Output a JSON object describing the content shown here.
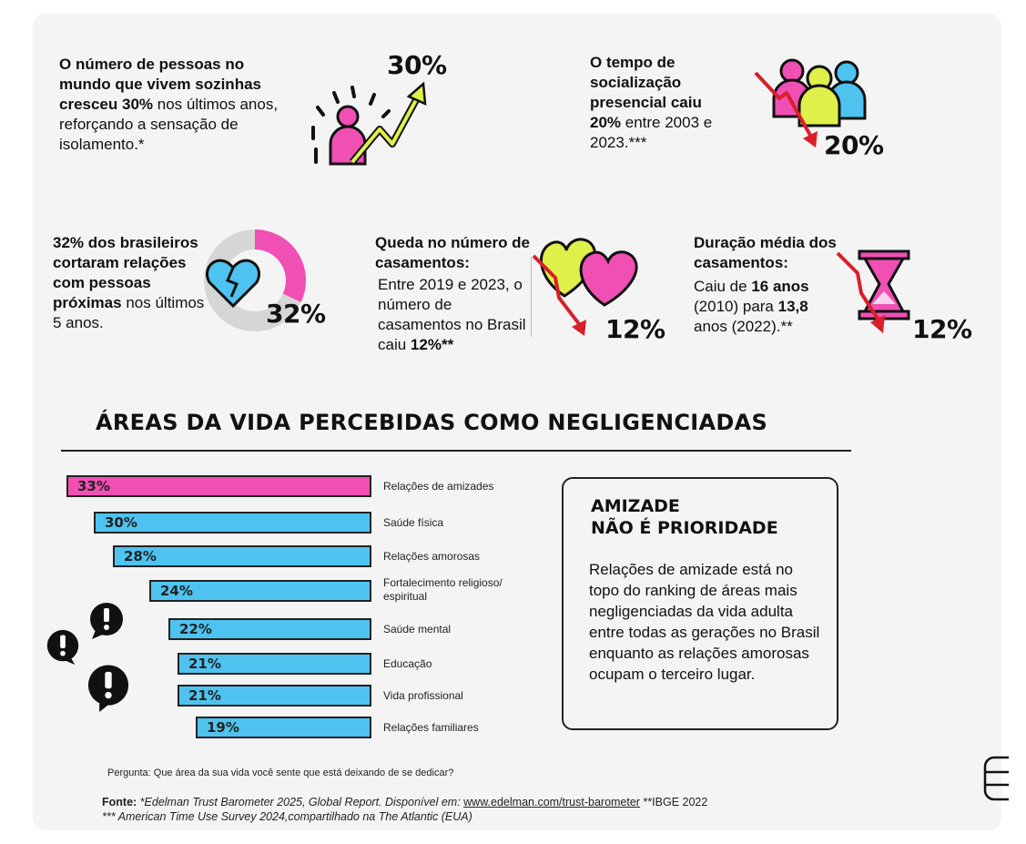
{
  "colors": {
    "pink": "#f04fb4",
    "blue": "#4ec3f0",
    "lime": "#dff04a",
    "red": "#d8202a",
    "dark": "#111111",
    "bg": "#f4f4f4"
  },
  "stats": {
    "alone": {
      "pre": "O número de pessoas no mundo que vivem sozinhas cresceu ",
      "strong": "30%",
      "post": " nos últimos anos, reforçando a sensação de isolamento.*",
      "pct": "30%"
    },
    "social": {
      "pre": "O tempo de socialização presencial caiu ",
      "strong": "20%",
      "post": " entre 2003 e 2023.***",
      "pct": "20%"
    },
    "cut": {
      "text": "32% dos brasileiros cortaram relações com pessoas próximas",
      "post": "nos últimos 5 anos.",
      "pct": "32%",
      "share": 32
    },
    "marriage": {
      "title": "Queda no número de casamentos:",
      "pre": "Entre 2019 e 2023, o número de casamentos no Brasil caiu ",
      "strong": "12%**",
      "pct": "12%"
    },
    "duration": {
      "title": "Duração média dos casamentos:",
      "pre": "Caiu de ",
      "strong1": "16 anos",
      "mid": " (2010) para ",
      "strong2": "13,8",
      "post": " anos (2022).**",
      "pct": "12%"
    }
  },
  "chart_data": {
    "type": "bar",
    "title": "ÁREAS DA VIDA PERCEBIDAS COMO NEGLIGENCIADAS",
    "categories": [
      "Relações de amizades",
      "Saúde física",
      "Relações amorosas",
      "Fortalecimento religioso/ espiritual",
      "Saúde mental",
      "Educação",
      "Vida profissional",
      "Relações familiares"
    ],
    "values": [
      33,
      30,
      28,
      24,
      22,
      21,
      21,
      19
    ],
    "labels": [
      "33%",
      "30%",
      "28%",
      "24%",
      "22%",
      "21%",
      "21%",
      "19%"
    ],
    "highlight_index": 0,
    "xlim": [
      0,
      33
    ],
    "question": "Pergunta: Que área da sua vida você sente que está deixando de se dedicar?"
  },
  "callout": {
    "title_line1": "AMIZADE",
    "title_line2": "NÃO É PRIORIDADE",
    "body": "Relações de amizade está no topo do ranking de áreas mais negligenciadas da vida adulta entre todas as gerações no Brasil enquanto as relações amorosas ocupam o terceiro lugar."
  },
  "source": {
    "label": "Fonte:",
    "line1_italic": " *Edelman Trust Barometer 2025, Global Report. Disponível em: ",
    "link": "www.edelman.com/trust-barometer",
    "line1_rest": " **IBGE 2022",
    "line2": "*** American Time Use Survey 2024,compartilhado na The Atlantic (EUA)"
  }
}
